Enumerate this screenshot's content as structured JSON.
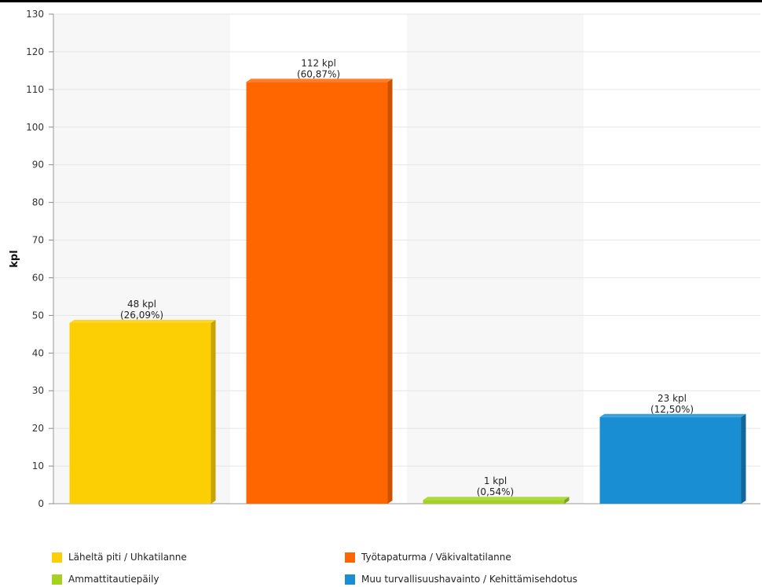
{
  "chart_data": {
    "type": "bar",
    "title": "",
    "xlabel": "",
    "ylabel": "kpl",
    "ylim": [
      0,
      130
    ],
    "yticks": [
      0,
      10,
      20,
      30,
      40,
      50,
      60,
      70,
      80,
      90,
      100,
      110,
      120,
      130
    ],
    "grid": true,
    "legend_position": "bottom",
    "categories": [
      "Läheltä piti / Uhkatilanne",
      "Työtapaturma / Väkivaltatilanne",
      "Ammattitautiepäily",
      "Muu turvallisuushavainto / Kehittämisehdotus"
    ],
    "values": [
      48,
      112,
      1,
      23
    ],
    "value_labels": [
      "48 kpl",
      "112 kpl",
      "1 kpl",
      "23 kpl"
    ],
    "percent_labels": [
      "(26,09%)",
      "(60,87%)",
      "(0,54%)",
      "(12,50%)"
    ],
    "colors": [
      "#FCCF05",
      "#FF6600",
      "#A5D21E",
      "#1A8ED2"
    ],
    "side_colors": [
      "#C9A400",
      "#CC5200",
      "#7FA316",
      "#12679A"
    ]
  }
}
